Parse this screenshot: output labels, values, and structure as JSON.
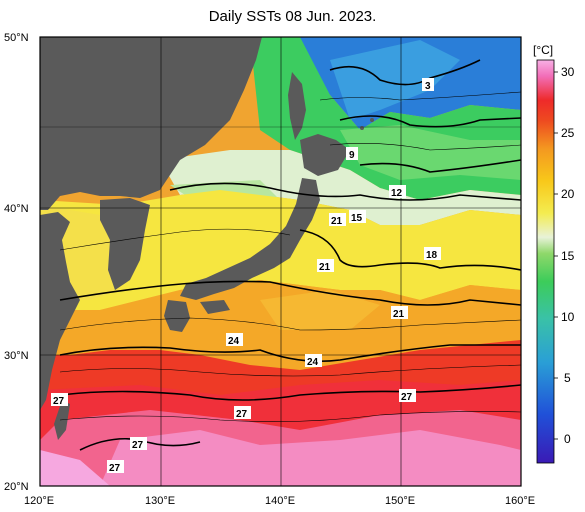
{
  "title": "Daily SSTs 08 Jun. 2023.",
  "unit_label": "[°C]",
  "lat_ticks": [
    "50°N",
    "40°N",
    "30°N",
    "20°N"
  ],
  "lon_ticks": [
    "120°E",
    "130°E",
    "140°E",
    "150°E",
    "160°E"
  ],
  "colorbar": {
    "ticks": [
      "30",
      "25",
      "20",
      "15",
      "10",
      "5",
      "0"
    ],
    "range": [
      -2,
      31
    ]
  },
  "contour_labels": [
    "3",
    "9",
    "12",
    "15",
    "21",
    "21",
    "18",
    "21",
    "24",
    "24",
    "27",
    "27",
    "27",
    "27",
    "27"
  ],
  "colors": {
    "land": "#5a5a5a",
    "frame": "#000000"
  }
}
